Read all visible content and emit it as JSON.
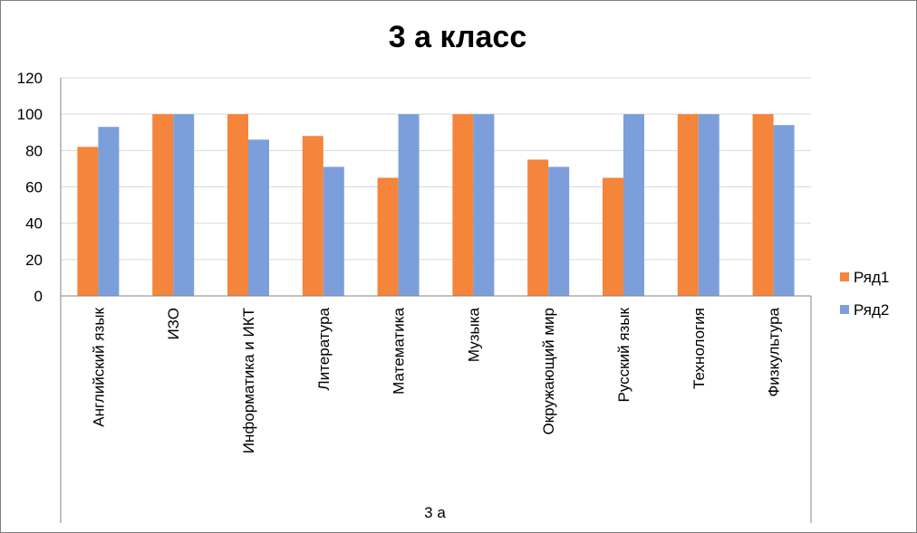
{
  "chart_data": {
    "type": "bar",
    "title": "3 а класс",
    "group_label": "3 а",
    "categories": [
      "Английский язык",
      "ИЗО",
      "Информатика и ИКТ",
      "Литература",
      "Математика",
      "Музыка",
      "Окружающий мир",
      "Русский язык",
      "Технология",
      "Физкультура"
    ],
    "series": [
      {
        "name": "Ряд1",
        "color": "#f4853b",
        "values": [
          82,
          100,
          100,
          88,
          65,
          100,
          75,
          65,
          100,
          100
        ]
      },
      {
        "name": "Ряд2",
        "color": "#7c9fdc",
        "values": [
          93,
          100,
          86,
          71,
          100,
          100,
          71,
          100,
          100,
          94
        ]
      }
    ],
    "ylim": [
      0,
      120
    ],
    "yticks": [
      "0",
      "20",
      "40",
      "60",
      "80",
      "100",
      "120"
    ],
    "grid": true,
    "legend_position": "right"
  }
}
